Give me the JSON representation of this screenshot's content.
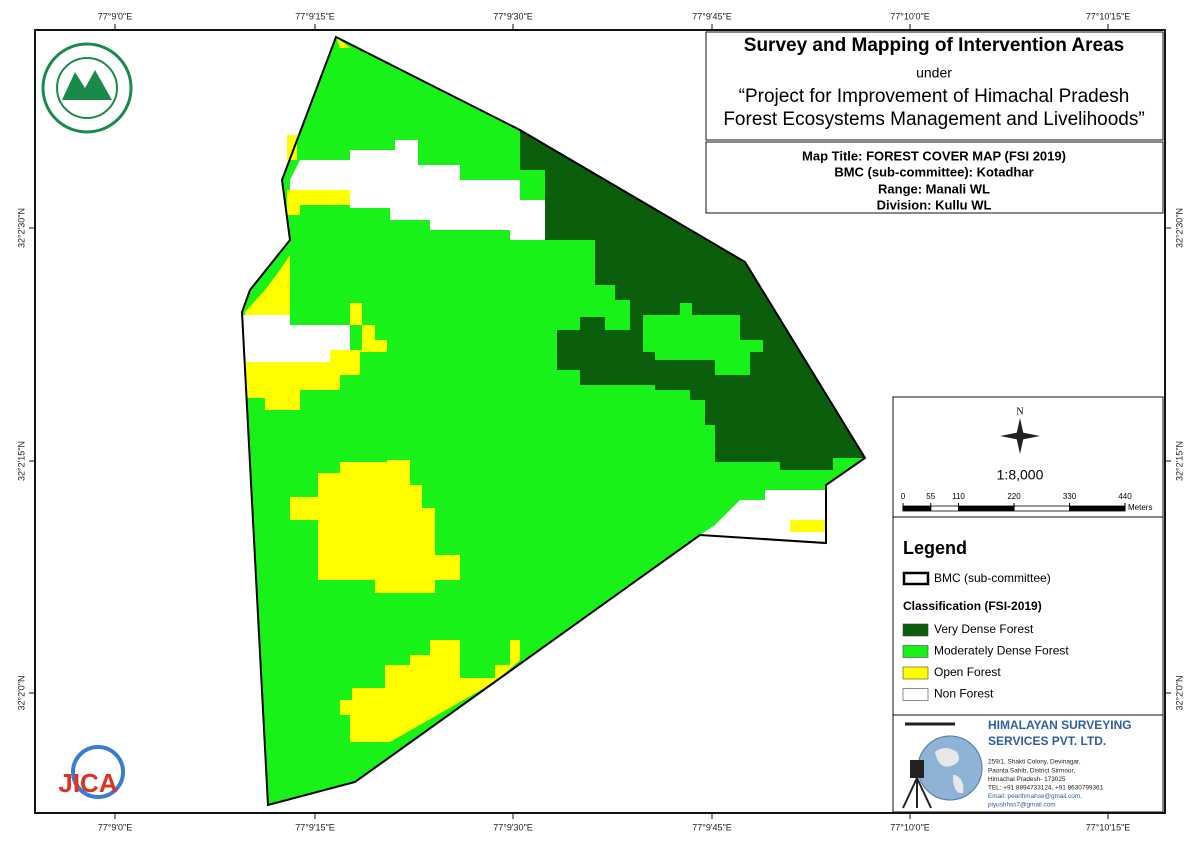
{
  "map": {
    "lon_labels": [
      "77°9'0\"E",
      "77°9'15\"E",
      "77°9'30\"E",
      "77°9'45\"E",
      "77°10'0\"E",
      "77°10'15\"E"
    ],
    "lat_labels": [
      "32°2'30\"N",
      "32°2'15\"N",
      "32°2'0\"N"
    ]
  },
  "title_box": {
    "title": "Survey and Mapping of Intervention Areas",
    "under": "under",
    "project_line1": "“Project for Improvement of Himachal Pradesh",
    "project_line2": "Forest Ecosystems Management and Livelihoods”"
  },
  "info_box": {
    "map_title": "Map Title: FOREST COVER MAP (FSI 2019)",
    "bmc": "BMC (sub-committee): Kotadhar",
    "range": "Range: Manali WL",
    "division": "Division: Kullu WL"
  },
  "scale": {
    "north": "N",
    "ratio": "1:8,000",
    "ticks": [
      0,
      55,
      110,
      220,
      330,
      440
    ],
    "unit": "Meters"
  },
  "legend": {
    "title": "Legend",
    "boundary": "BMC (sub-committee)",
    "classification_title": "Classification (FSI-2019)",
    "classes": [
      {
        "label": "Very Dense Forest",
        "color": "#0b5e0b"
      },
      {
        "label": "Moderately Dense Forest",
        "color": "#19f219"
      },
      {
        "label": "Open Forest",
        "color": "#ffff00"
      },
      {
        "label": "Non Forest",
        "color": "#ffffff"
      }
    ]
  },
  "company": {
    "name_line1": "HIMALAYAN SURVEYING",
    "name_line2": "SERVICES PVT. LTD.",
    "address": [
      "259/1, Shakti Colony, Devinagar,",
      "Paonta Sahib, District Sirmour,",
      "Himachal Pradesh- 173025",
      "TEL: +91 8894733124, +91 8630799361",
      "Email: pearlhmahse@gmail.com,",
      "piyushhss7@gmail.com"
    ]
  },
  "jica": "JICA"
}
